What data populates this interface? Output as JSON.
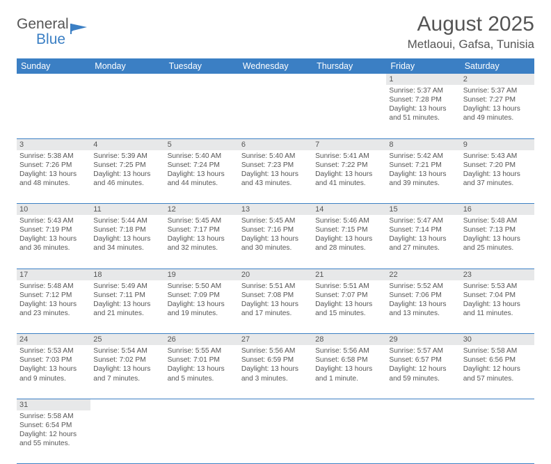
{
  "logo": {
    "part1": "General",
    "part2": "Blue"
  },
  "header": {
    "title": "August 2025",
    "location": "Metlaoui, Gafsa, Tunisia"
  },
  "calendar": {
    "header_bg": "#3b7fc4",
    "header_fg": "#ffffff",
    "daynum_bg": "#e7e8e9",
    "rule_color": "#3b7fc4",
    "text_color": "#555555",
    "days": [
      "Sunday",
      "Monday",
      "Tuesday",
      "Wednesday",
      "Thursday",
      "Friday",
      "Saturday"
    ],
    "weeks": [
      [
        null,
        null,
        null,
        null,
        null,
        {
          "n": "1",
          "sr": "5:37 AM",
          "ss": "7:28 PM",
          "dl": "13 hours and 51 minutes."
        },
        {
          "n": "2",
          "sr": "5:37 AM",
          "ss": "7:27 PM",
          "dl": "13 hours and 49 minutes."
        }
      ],
      [
        {
          "n": "3",
          "sr": "5:38 AM",
          "ss": "7:26 PM",
          "dl": "13 hours and 48 minutes."
        },
        {
          "n": "4",
          "sr": "5:39 AM",
          "ss": "7:25 PM",
          "dl": "13 hours and 46 minutes."
        },
        {
          "n": "5",
          "sr": "5:40 AM",
          "ss": "7:24 PM",
          "dl": "13 hours and 44 minutes."
        },
        {
          "n": "6",
          "sr": "5:40 AM",
          "ss": "7:23 PM",
          "dl": "13 hours and 43 minutes."
        },
        {
          "n": "7",
          "sr": "5:41 AM",
          "ss": "7:22 PM",
          "dl": "13 hours and 41 minutes."
        },
        {
          "n": "8",
          "sr": "5:42 AM",
          "ss": "7:21 PM",
          "dl": "13 hours and 39 minutes."
        },
        {
          "n": "9",
          "sr": "5:43 AM",
          "ss": "7:20 PM",
          "dl": "13 hours and 37 minutes."
        }
      ],
      [
        {
          "n": "10",
          "sr": "5:43 AM",
          "ss": "7:19 PM",
          "dl": "13 hours and 36 minutes."
        },
        {
          "n": "11",
          "sr": "5:44 AM",
          "ss": "7:18 PM",
          "dl": "13 hours and 34 minutes."
        },
        {
          "n": "12",
          "sr": "5:45 AM",
          "ss": "7:17 PM",
          "dl": "13 hours and 32 minutes."
        },
        {
          "n": "13",
          "sr": "5:45 AM",
          "ss": "7:16 PM",
          "dl": "13 hours and 30 minutes."
        },
        {
          "n": "14",
          "sr": "5:46 AM",
          "ss": "7:15 PM",
          "dl": "13 hours and 28 minutes."
        },
        {
          "n": "15",
          "sr": "5:47 AM",
          "ss": "7:14 PM",
          "dl": "13 hours and 27 minutes."
        },
        {
          "n": "16",
          "sr": "5:48 AM",
          "ss": "7:13 PM",
          "dl": "13 hours and 25 minutes."
        }
      ],
      [
        {
          "n": "17",
          "sr": "5:48 AM",
          "ss": "7:12 PM",
          "dl": "13 hours and 23 minutes."
        },
        {
          "n": "18",
          "sr": "5:49 AM",
          "ss": "7:11 PM",
          "dl": "13 hours and 21 minutes."
        },
        {
          "n": "19",
          "sr": "5:50 AM",
          "ss": "7:09 PM",
          "dl": "13 hours and 19 minutes."
        },
        {
          "n": "20",
          "sr": "5:51 AM",
          "ss": "7:08 PM",
          "dl": "13 hours and 17 minutes."
        },
        {
          "n": "21",
          "sr": "5:51 AM",
          "ss": "7:07 PM",
          "dl": "13 hours and 15 minutes."
        },
        {
          "n": "22",
          "sr": "5:52 AM",
          "ss": "7:06 PM",
          "dl": "13 hours and 13 minutes."
        },
        {
          "n": "23",
          "sr": "5:53 AM",
          "ss": "7:04 PM",
          "dl": "13 hours and 11 minutes."
        }
      ],
      [
        {
          "n": "24",
          "sr": "5:53 AM",
          "ss": "7:03 PM",
          "dl": "13 hours and 9 minutes."
        },
        {
          "n": "25",
          "sr": "5:54 AM",
          "ss": "7:02 PM",
          "dl": "13 hours and 7 minutes."
        },
        {
          "n": "26",
          "sr": "5:55 AM",
          "ss": "7:01 PM",
          "dl": "13 hours and 5 minutes."
        },
        {
          "n": "27",
          "sr": "5:56 AM",
          "ss": "6:59 PM",
          "dl": "13 hours and 3 minutes."
        },
        {
          "n": "28",
          "sr": "5:56 AM",
          "ss": "6:58 PM",
          "dl": "13 hours and 1 minute."
        },
        {
          "n": "29",
          "sr": "5:57 AM",
          "ss": "6:57 PM",
          "dl": "12 hours and 59 minutes."
        },
        {
          "n": "30",
          "sr": "5:58 AM",
          "ss": "6:56 PM",
          "dl": "12 hours and 57 minutes."
        }
      ],
      [
        {
          "n": "31",
          "sr": "5:58 AM",
          "ss": "6:54 PM",
          "dl": "12 hours and 55 minutes."
        },
        null,
        null,
        null,
        null,
        null,
        null
      ]
    ],
    "labels": {
      "sunrise": "Sunrise: ",
      "sunset": "Sunset: ",
      "daylight": "Daylight: "
    }
  }
}
